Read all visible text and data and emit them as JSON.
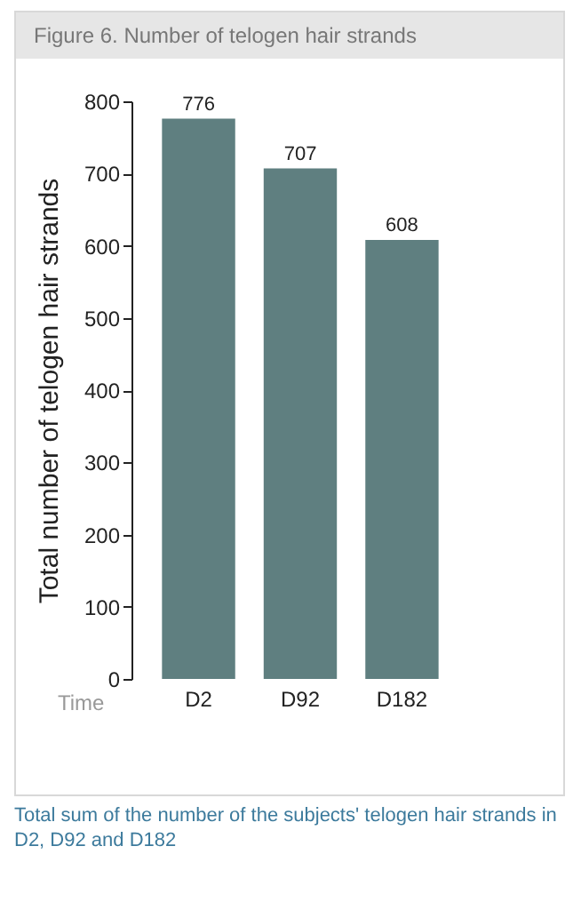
{
  "chart_data": {
    "type": "bar",
    "title": "Figure 6. Number of telogen hair strands",
    "xlabel": "Time",
    "ylabel": "Total number of telogen hair strands",
    "categories": [
      "D2",
      "D92",
      "D182"
    ],
    "values": [
      776,
      707,
      608
    ],
    "color": "#5f7f80",
    "ylim": [
      0,
      800
    ],
    "yticks": [
      0,
      100,
      200,
      300,
      400,
      500,
      600,
      700,
      800
    ],
    "data_labels": true,
    "grid": false,
    "annotations": [
      "Total sum of the number of the subjects' telogen hair strands in D2, D92 and D182"
    ]
  }
}
